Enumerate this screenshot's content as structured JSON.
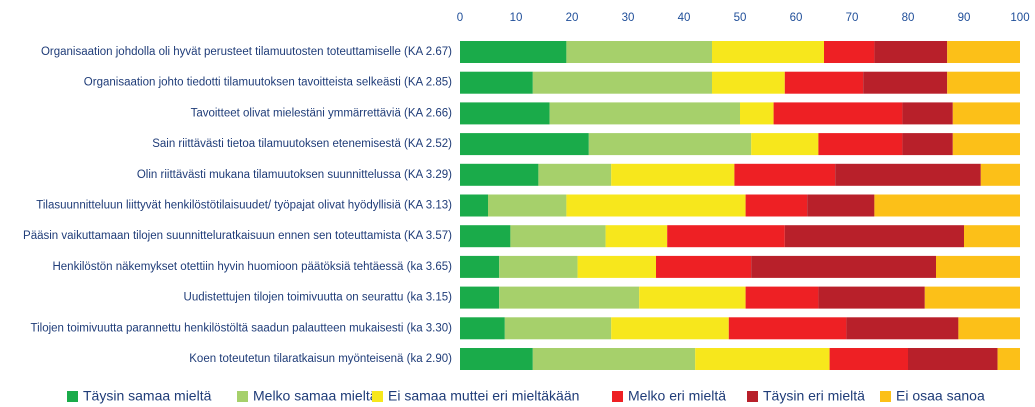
{
  "chart_data": {
    "type": "stacked_barh",
    "categories": [
      "Organisaation johdolla oli hyvät perusteet tilamuutosten toteuttamiselle (KA 2.67)",
      "Organisaation johto tiedotti tilamuutoksen tavoitteista selkeästi (KA 2.85)",
      "Tavoitteet olivat mielestäni ymmärrettäviä (KA 2.66)",
      "Sain riittävästi tietoa tilamuutoksen etenemisestä (KA 2.52)",
      "Olin riittävästi mukana tilamuutoksen suunnittelussa (KA 3.29)",
      "Tilasuunnitteluun liittyvät henkilöstötilaisuudet/ työpajat olivat hyödyllisiä (KA 3.13)",
      "Pääsin vaikuttamaan tilojen suunnitteluratkaisuun ennen sen toteuttamista (KA 3.57)",
      "Henkilöstön näkemykset otettiin hyvin huomioon päätöksiä tehtäessä (ka 3.65)",
      "Uudistettujen tilojen toimivuutta on seurattu (ka 3.15)",
      "Tilojen toimivuutta parannettu henkilöstöltä saadun palautteen mukaisesti (ka 3.30)",
      "Koen toteutetun tilaratkaisun myönteisenä (ka 2.90)"
    ],
    "series": [
      {
        "name": "Täysin samaa mieltä",
        "color": "#1aab4a",
        "values": [
          19,
          13,
          16,
          23,
          14,
          5,
          9,
          7,
          7,
          8,
          13
        ]
      },
      {
        "name": "Melko samaa mieltä",
        "color": "#a6d06b",
        "values": [
          26,
          32,
          34,
          29,
          13,
          14,
          17,
          14,
          25,
          19,
          29
        ]
      },
      {
        "name": "Ei samaa muttei eri mieltäkään",
        "color": "#f7e71c",
        "values": [
          20,
          13,
          6,
          12,
          22,
          32,
          11,
          14,
          19,
          21,
          24
        ]
      },
      {
        "name": "Melko eri mieltä",
        "color": "#ee2024",
        "values": [
          9,
          14,
          23,
          15,
          18,
          11,
          21,
          17,
          13,
          21,
          14
        ]
      },
      {
        "name": "Täysin eri mieltä",
        "color": "#b8202a",
        "values": [
          13,
          15,
          9,
          9,
          26,
          12,
          32,
          33,
          19,
          20,
          16
        ]
      },
      {
        "name": "Ei osaa sanoa",
        "color": "#fcc018",
        "values": [
          13,
          13,
          12,
          12,
          7,
          26,
          10,
          15,
          17,
          11,
          4
        ]
      }
    ],
    "xlim": [
      0,
      100
    ],
    "xticks": [
      0,
      10,
      20,
      30,
      40,
      50,
      60,
      70,
      80,
      90,
      100
    ]
  }
}
